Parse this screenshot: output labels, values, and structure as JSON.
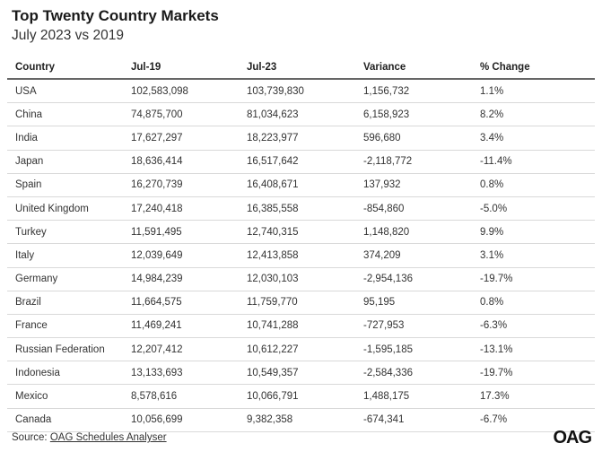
{
  "title": "Top Twenty Country Markets",
  "subtitle": "July 2023 vs 2019",
  "source_label": "Source: ",
  "source_link": "OAG Schedules Analyser",
  "logo": "OAG",
  "chart_data": {
    "type": "table",
    "title": "Top Twenty Country Markets",
    "subtitle": "July 2023 vs 2019",
    "columns": [
      "Country",
      "Jul-19",
      "Jul-23",
      "Variance",
      "% Change"
    ],
    "rows": [
      [
        "USA",
        "102,583,098",
        "103,739,830",
        "1,156,732",
        "1.1%"
      ],
      [
        "China",
        "74,875,700",
        "81,034,623",
        "6,158,923",
        "8.2%"
      ],
      [
        "India",
        "17,627,297",
        "18,223,977",
        "596,680",
        "3.4%"
      ],
      [
        "Japan",
        "18,636,414",
        "16,517,642",
        "-2,118,772",
        "-11.4%"
      ],
      [
        "Spain",
        "16,270,739",
        "16,408,671",
        "137,932",
        "0.8%"
      ],
      [
        "United Kingdom",
        "17,240,418",
        "16,385,558",
        "-854,860",
        "-5.0%"
      ],
      [
        "Turkey",
        "11,591,495",
        "12,740,315",
        "1,148,820",
        "9.9%"
      ],
      [
        "Italy",
        "12,039,649",
        "12,413,858",
        "374,209",
        "3.1%"
      ],
      [
        "Germany",
        "14,984,239",
        "12,030,103",
        "-2,954,136",
        "-19.7%"
      ],
      [
        "Brazil",
        "11,664,575",
        "11,759,770",
        "95,195",
        "0.8%"
      ],
      [
        "France",
        "11,469,241",
        "10,741,288",
        "-727,953",
        "-6.3%"
      ],
      [
        "Russian Federation",
        "12,207,412",
        "10,612,227",
        "-1,595,185",
        "-13.1%"
      ],
      [
        "Indonesia",
        "13,133,693",
        "10,549,357",
        "-2,584,336",
        "-19.7%"
      ],
      [
        "Mexico",
        "8,578,616",
        "10,066,791",
        "1,488,175",
        "17.3%"
      ],
      [
        "Canada",
        "10,056,699",
        "9,382,358",
        "-674,341",
        "-6.7%"
      ]
    ]
  }
}
